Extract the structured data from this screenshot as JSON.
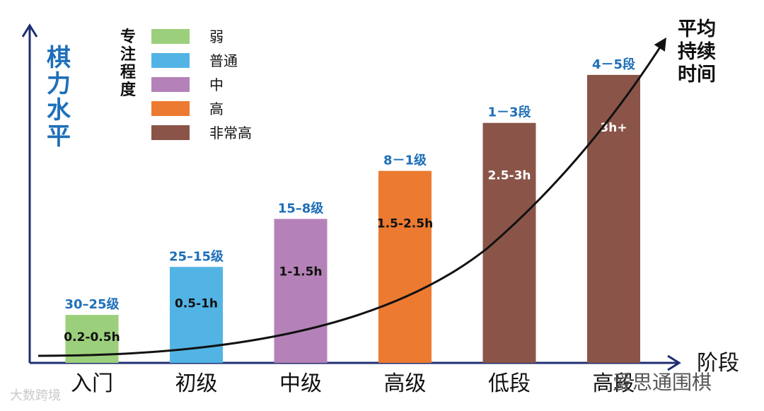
{
  "chart_data": {
    "type": "bar",
    "title": "平均持续时间",
    "xlabel": "阶段",
    "ylabel": "棋力水平",
    "categories": [
      "入门",
      "初级",
      "中级",
      "高级",
      "低段",
      "高段"
    ],
    "values": [
      1,
      2,
      3,
      4,
      5,
      6
    ],
    "ylim": [
      0,
      7
    ],
    "level_labels": [
      "30–25级",
      "25–15级",
      "15–8级",
      "8－1级",
      "1－3段",
      "4－5段"
    ],
    "duration_labels": [
      "0.2-0.5h",
      "0.5-1h",
      "1-1.5h",
      "1.5-2.5h",
      "2.5-3h",
      "3h+"
    ],
    "bar_focus_index": [
      0,
      1,
      2,
      3,
      4,
      4
    ],
    "legend": {
      "title": "专注程度",
      "position": "top-left",
      "entries": [
        {
          "label": "弱",
          "color": "#9ccf7b"
        },
        {
          "label": "普通",
          "color": "#52b4e4"
        },
        {
          "label": "中",
          "color": "#b482b8"
        },
        {
          "label": "高",
          "color": "#ec7a31"
        },
        {
          "label": "非常高",
          "color": "#8a5548"
        }
      ]
    },
    "trend_curve": "exponential",
    "grid": false
  },
  "watermarks": {
    "bottom_left": "大数跨境",
    "bottom_right": "爱思通围棋"
  },
  "colors": {
    "axis": "#1f2d70",
    "level_label": "#1e6fb8",
    "curve": "#111111"
  }
}
